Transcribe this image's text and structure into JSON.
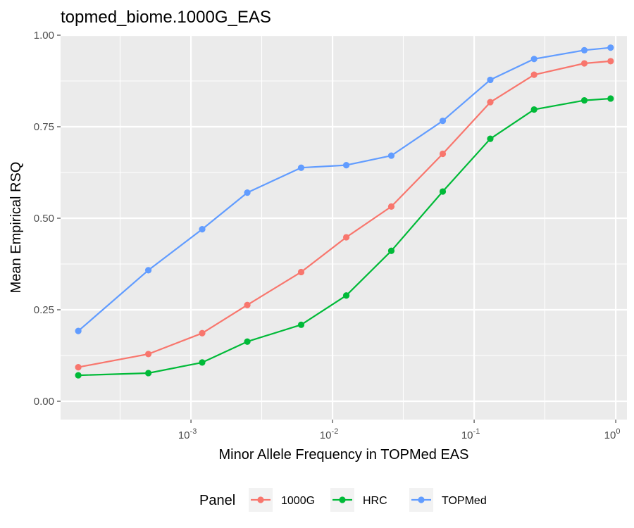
{
  "chart_data": {
    "type": "line",
    "title": "topmed_biome.1000G_EAS",
    "xlabel": "Minor Allele Frequency in TOPMed EAS",
    "ylabel": "Mean Empirical RSQ",
    "x_scale": "log10",
    "xlim": [
      0.00012,
      1.2
    ],
    "ylim": [
      -0.05,
      1.0
    ],
    "x_ticks": [
      {
        "value": 0.001,
        "base": "10",
        "exp": "-3"
      },
      {
        "value": 0.01,
        "base": "10",
        "exp": "-2"
      },
      {
        "value": 0.1,
        "base": "10",
        "exp": "-1"
      },
      {
        "value": 1,
        "base": "10",
        "exp": "0"
      }
    ],
    "x_minor_grid": [
      0.000316,
      0.00316,
      0.0316,
      0.316
    ],
    "y_ticks": [
      {
        "value": 0.0,
        "label": "0.00"
      },
      {
        "value": 0.25,
        "label": "0.25"
      },
      {
        "value": 0.5,
        "label": "0.50"
      },
      {
        "value": 0.75,
        "label": "0.75"
      },
      {
        "value": 1.0,
        "label": "1.00"
      }
    ],
    "y_minor_grid": [
      0.125,
      0.375,
      0.625,
      0.875
    ],
    "grid": true,
    "legend": {
      "title": "Panel",
      "position": "bottom"
    },
    "x": [
      0.00016,
      0.0005,
      0.0012,
      0.0025,
      0.006,
      0.0125,
      0.026,
      0.06,
      0.13,
      0.265,
      0.6,
      0.92
    ],
    "series": [
      {
        "name": "1000G",
        "color": "#F8766D",
        "values": [
          0.093,
          0.129,
          0.186,
          0.263,
          0.353,
          0.448,
          0.532,
          0.676,
          0.817,
          0.892,
          0.923,
          0.929
        ]
      },
      {
        "name": "HRC",
        "color": "#00BA38",
        "values": [
          0.071,
          0.077,
          0.106,
          0.163,
          0.209,
          0.289,
          0.411,
          0.573,
          0.717,
          0.797,
          0.822,
          0.827
        ]
      },
      {
        "name": "TOPMed",
        "color": "#619CFF",
        "values": [
          0.192,
          0.358,
          0.47,
          0.57,
          0.638,
          0.645,
          0.671,
          0.766,
          0.878,
          0.935,
          0.959,
          0.966
        ]
      }
    ]
  }
}
